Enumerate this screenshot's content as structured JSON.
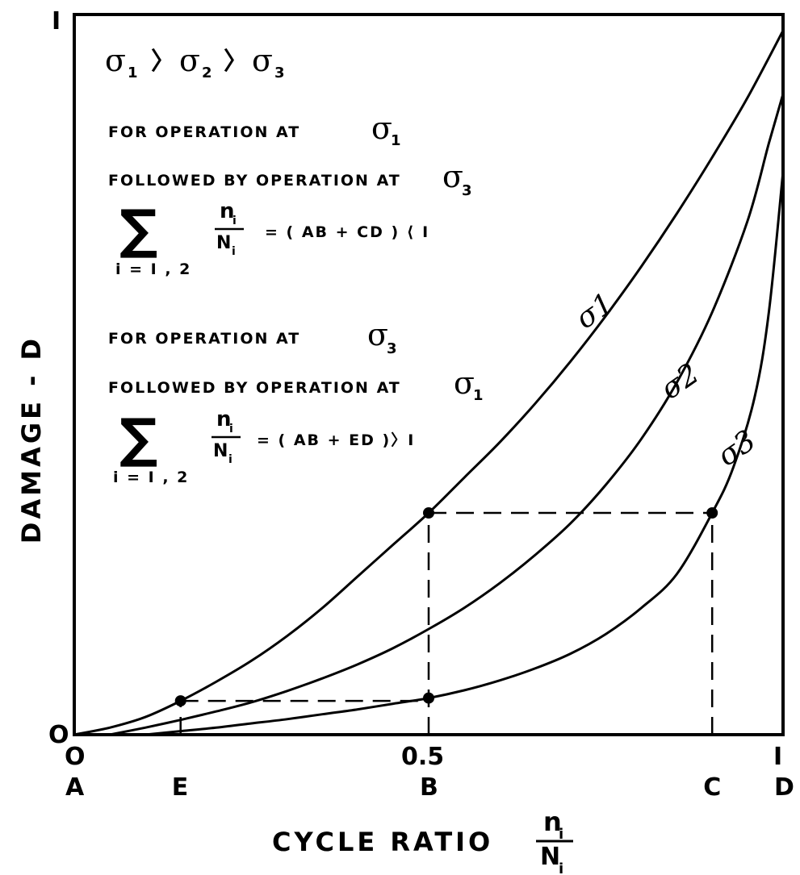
{
  "chart_data": {
    "type": "line",
    "xlabel": "CYCLE RATIO",
    "xlabel_fraction": {
      "numerator": "n",
      "numerator_sub": "i",
      "denominator": "N",
      "denominator_sub": "i"
    },
    "ylabel": "DAMAGE - D",
    "xlim": [
      0,
      1
    ],
    "ylim": [
      0,
      1
    ],
    "grid": false,
    "x_tick_labels": [
      "O",
      "0.5",
      "I"
    ],
    "y_tick_labels": [
      "O",
      "I"
    ],
    "x_letters": [
      {
        "label": "A",
        "x": 0
      },
      {
        "label": "E",
        "x": 0.15
      },
      {
        "label": "B",
        "x": 0.5
      },
      {
        "label": "C",
        "x": 0.9
      },
      {
        "label": "D",
        "x": 1.0
      }
    ],
    "series": [
      {
        "label": "σ1",
        "label_x": 0.72,
        "label_y": 0.575,
        "x": [
          0,
          0.05,
          0.1,
          0.15,
          0.2,
          0.25,
          0.3,
          0.35,
          0.4,
          0.45,
          0.5,
          0.55,
          0.6,
          0.65,
          0.7,
          0.75,
          0.8,
          0.85,
          0.9,
          0.95,
          1.0
        ],
        "y": [
          0,
          0.01,
          0.025,
          0.048,
          0.075,
          0.105,
          0.14,
          0.18,
          0.225,
          0.27,
          0.315,
          0.365,
          0.415,
          0.47,
          0.53,
          0.595,
          0.665,
          0.74,
          0.82,
          0.905,
          1.0
        ]
      },
      {
        "label": "σ2",
        "label_x": 0.84,
        "label_y": 0.475,
        "x": [
          0.05,
          0.1,
          0.15,
          0.2,
          0.25,
          0.3,
          0.35,
          0.4,
          0.45,
          0.5,
          0.55,
          0.6,
          0.65,
          0.7,
          0.75,
          0.8,
          0.85,
          0.9,
          0.95,
          0.98,
          1.0
        ],
        "y": [
          0,
          0.01,
          0.021,
          0.033,
          0.046,
          0.062,
          0.08,
          0.1,
          0.123,
          0.15,
          0.18,
          0.215,
          0.255,
          0.3,
          0.355,
          0.42,
          0.5,
          0.6,
          0.73,
          0.84,
          0.91
        ]
      },
      {
        "label": "σ3",
        "label_x": 0.92,
        "label_y": 0.38,
        "x": [
          0.1,
          0.15,
          0.2,
          0.25,
          0.3,
          0.35,
          0.4,
          0.45,
          0.5,
          0.55,
          0.6,
          0.65,
          0.7,
          0.75,
          0.8,
          0.85,
          0.9,
          0.93,
          0.96,
          0.98,
          1.0
        ],
        "y": [
          0,
          0.005,
          0.01,
          0.016,
          0.022,
          0.029,
          0.036,
          0.044,
          0.052,
          0.063,
          0.077,
          0.094,
          0.115,
          0.143,
          0.18,
          0.228,
          0.315,
          0.38,
          0.48,
          0.6,
          0.8
        ]
      }
    ],
    "points": [
      {
        "x": 0.15,
        "y": 0.048
      },
      {
        "x": 0.5,
        "y": 0.052
      },
      {
        "x": 0.5,
        "y": 0.315
      },
      {
        "x": 0.9,
        "y": 0.315
      }
    ],
    "dashed_lines": [
      {
        "from": [
          0.15,
          0.048
        ],
        "to": [
          0.5,
          0.048
        ]
      },
      {
        "from": [
          0.15,
          0
        ],
        "to": [
          0.15,
          0.048
        ]
      },
      {
        "from": [
          0.5,
          0
        ],
        "to": [
          0.5,
          0.315
        ]
      },
      {
        "from": [
          0.5,
          0.315
        ],
        "to": [
          0.9,
          0.315
        ]
      },
      {
        "from": [
          0.9,
          0
        ],
        "to": [
          0.9,
          0.315
        ]
      }
    ]
  },
  "annotations": {
    "line1": {
      "s1": "σ",
      "s1_sub": "1",
      "gt1": "〉",
      "s2": "σ",
      "s2_sub": "2",
      "gt2": "〉",
      "s3": "σ",
      "s3_sub": "3"
    },
    "block1": {
      "line_a_text": "FOR  OPERATION  AT",
      "line_a_sigma": "σ",
      "line_a_sub": "1",
      "line_b_text": "FOLLOWED BY OPERATION AT",
      "line_b_sigma": "σ",
      "line_b_sub": "3",
      "sum_symbol": "∑",
      "frac_num": "n",
      "frac_num_sub": "i",
      "frac_den": "N",
      "frac_den_sub": "i",
      "rhs": "=   ( AB  +  CD ) ⟨ I",
      "index": "i = I , 2"
    },
    "block2": {
      "line_a_text": "FOR  OPERATION  AT",
      "line_a_sigma": "σ",
      "line_a_sub": "3",
      "line_b_text": "FOLLOWED BY OPERATION AT",
      "line_b_sigma": "σ",
      "line_b_sub": "1",
      "sum_symbol": "∑",
      "frac_num": "n",
      "frac_num_sub": "i",
      "frac_den": "N",
      "frac_den_sub": "i",
      "rhs": "=  ( AB  +  ED )〉I",
      "index": "i = I , 2"
    }
  }
}
